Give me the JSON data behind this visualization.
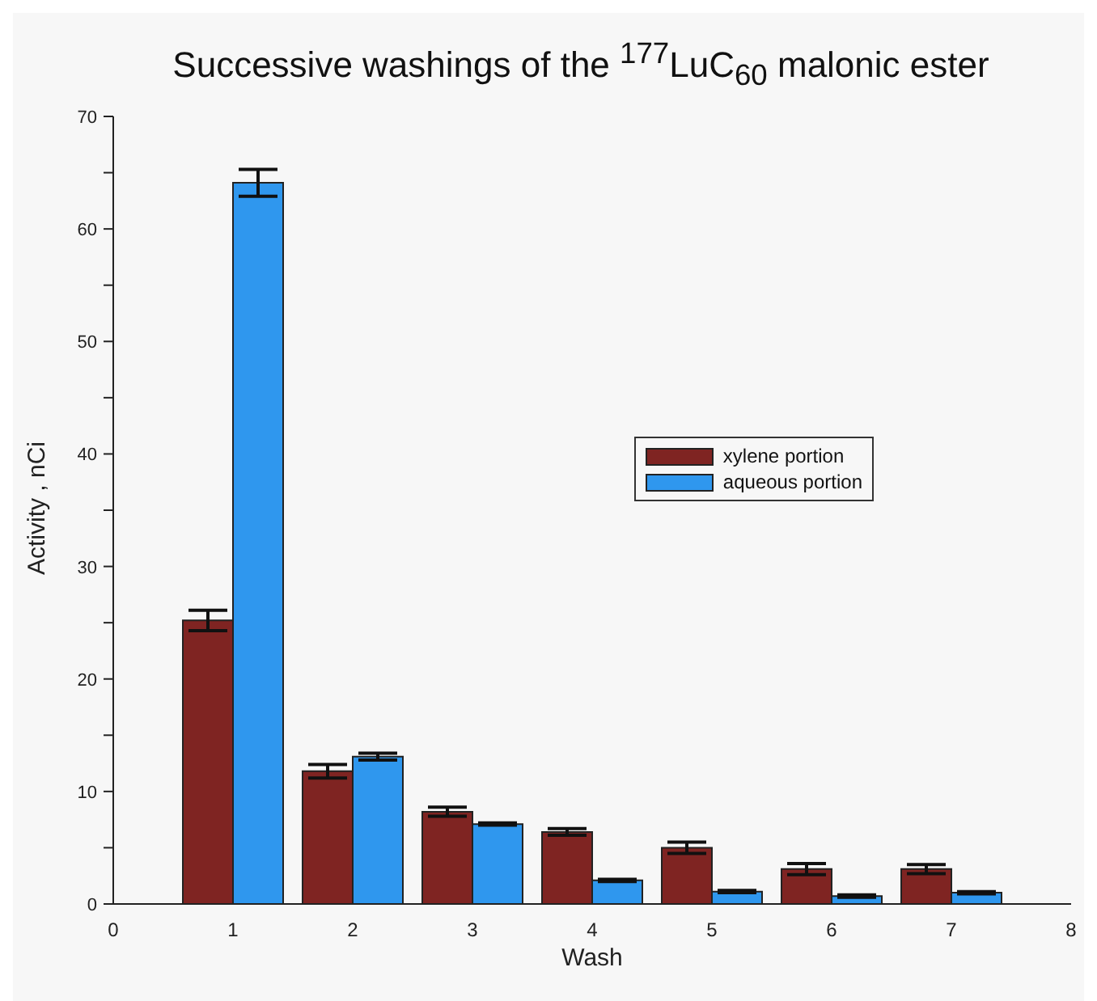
{
  "chart_data": {
    "type": "bar",
    "title": "Successive washings of the $^{177}$LuC$_{60}$ malonic ester",
    "xlabel": "Wash",
    "ylabel": "Activity , nCi",
    "x": [
      1,
      2,
      3,
      4,
      5,
      6,
      7
    ],
    "series": [
      {
        "name": "xylene portion",
        "color": "#7f2422",
        "values": [
          25.2,
          11.8,
          8.2,
          6.4,
          5.0,
          3.1,
          3.1
        ],
        "errors": [
          0.9,
          0.6,
          0.4,
          0.3,
          0.5,
          0.5,
          0.4
        ]
      },
      {
        "name": "aqueous portion",
        "color": "#2f97ee",
        "values": [
          64.1,
          13.1,
          7.1,
          2.1,
          1.1,
          0.7,
          1.0
        ],
        "errors": [
          1.2,
          0.3,
          0.1,
          0.1,
          0.1,
          0.1,
          0.1
        ]
      }
    ],
    "xlim": [
      0,
      8
    ],
    "xticks": [
      0,
      1,
      2,
      3,
      4,
      5,
      6,
      7,
      8
    ],
    "ylim": [
      0,
      70
    ],
    "yticks": [
      0,
      {
        "value": 5,
        "label": null
      },
      10,
      {
        "value": 15,
        "label": null
      },
      20,
      {
        "value": 25,
        "label": null
      },
      30,
      {
        "value": 35,
        "label": null
      },
      40,
      {
        "value": 45,
        "label": null
      },
      50,
      {
        "value": 55,
        "label": null
      },
      60,
      {
        "value": 65,
        "label": null
      },
      70
    ],
    "grid": false,
    "legend": "right"
  }
}
